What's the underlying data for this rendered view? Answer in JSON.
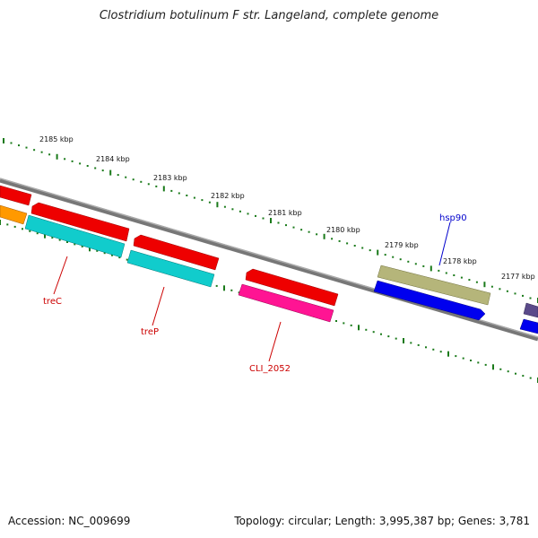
{
  "title": "Clostridium botulinum F str. Langeland, complete genome",
  "footer": {
    "accession": "Accession: NC_009699",
    "summary": "Topology: circular; Length: 3,995,387 bp; Genes: 3,781"
  },
  "kbp_labels": [
    "2185 kbp",
    "2184 kbp",
    "2183 kbp",
    "2182 kbp",
    "2181 kbp",
    "2180 kbp",
    "2179 kbp",
    "2178 kbp",
    "2177 kbp"
  ],
  "gene_labels": [
    {
      "id": "treC",
      "text": "treC",
      "color": "#cc0000"
    },
    {
      "id": "treP",
      "text": "treP",
      "color": "#cc0000"
    },
    {
      "id": "CLI_2052",
      "text": "CLI_2052",
      "color": "#cc0000"
    },
    {
      "id": "hsp90",
      "text": "hsp90",
      "color": "#0000cc"
    }
  ],
  "colors": {
    "backbone": "#808080",
    "ticks": "#1a7a1a",
    "cds_forward": "#ff0000",
    "cds_reverse": "#00cccc",
    "cds_orange": "#ff9900",
    "cds_pink": "#ff1493",
    "cds_olive": "#b5b57a",
    "cds_blue": "#0000ee",
    "cds_slate": "#5a4a8a"
  }
}
